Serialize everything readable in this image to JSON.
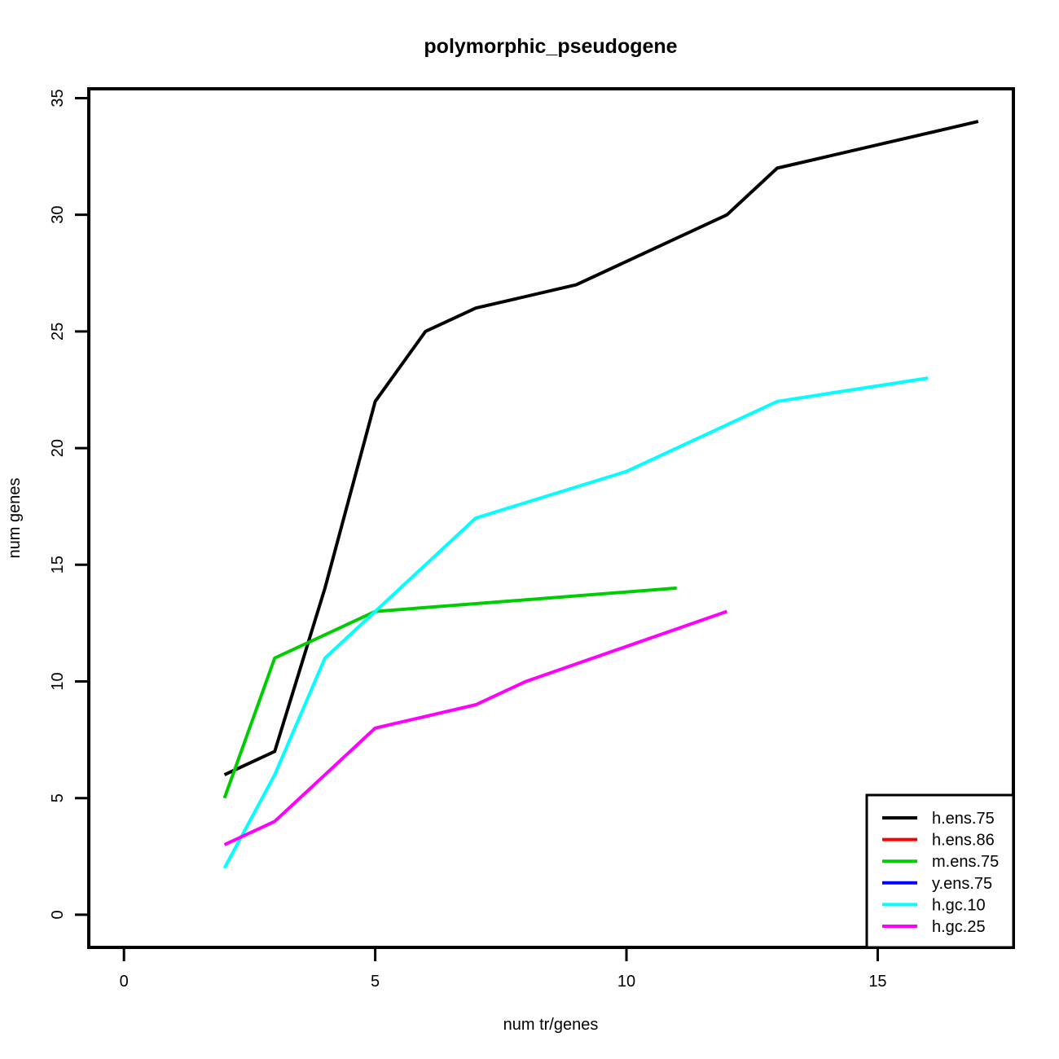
{
  "chart_data": {
    "type": "line",
    "title": "polymorphic_pseudogene",
    "xlabel": "num tr/genes",
    "ylabel": "num genes",
    "xlim": [
      -0.7,
      17.7
    ],
    "ylim": [
      -1.4,
      35.4
    ],
    "xticks": [
      0,
      5,
      10,
      15
    ],
    "yticks": [
      0,
      5,
      10,
      15,
      20,
      25,
      30,
      35
    ],
    "grid": false,
    "legend_position": "bottom-right",
    "series": [
      {
        "name": "h.ens.75",
        "color": "#000000",
        "x": [
          2,
          3,
          4,
          5,
          6,
          7,
          9,
          12,
          13,
          17
        ],
        "y": [
          6,
          7,
          14,
          22,
          25,
          26,
          27,
          30,
          32,
          34
        ]
      },
      {
        "name": "h.ens.86",
        "color": "#ff0000",
        "x": [],
        "y": []
      },
      {
        "name": "m.ens.75",
        "color": "#00cd00",
        "x": [
          2,
          3,
          5,
          11
        ],
        "y": [
          5,
          11,
          13,
          14
        ]
      },
      {
        "name": "y.ens.75",
        "color": "#0000ff",
        "x": [],
        "y": []
      },
      {
        "name": "h.gc.10",
        "color": "#00ffff",
        "x": [
          2,
          3,
          4,
          5,
          7,
          10,
          13,
          16
        ],
        "y": [
          2,
          6,
          11,
          13,
          17,
          19,
          22,
          23
        ]
      },
      {
        "name": "h.gc.25",
        "color": "#ff00ff",
        "x": [
          2,
          3,
          5,
          7,
          8,
          12
        ],
        "y": [
          3,
          4,
          8,
          9,
          10,
          13
        ]
      }
    ]
  }
}
